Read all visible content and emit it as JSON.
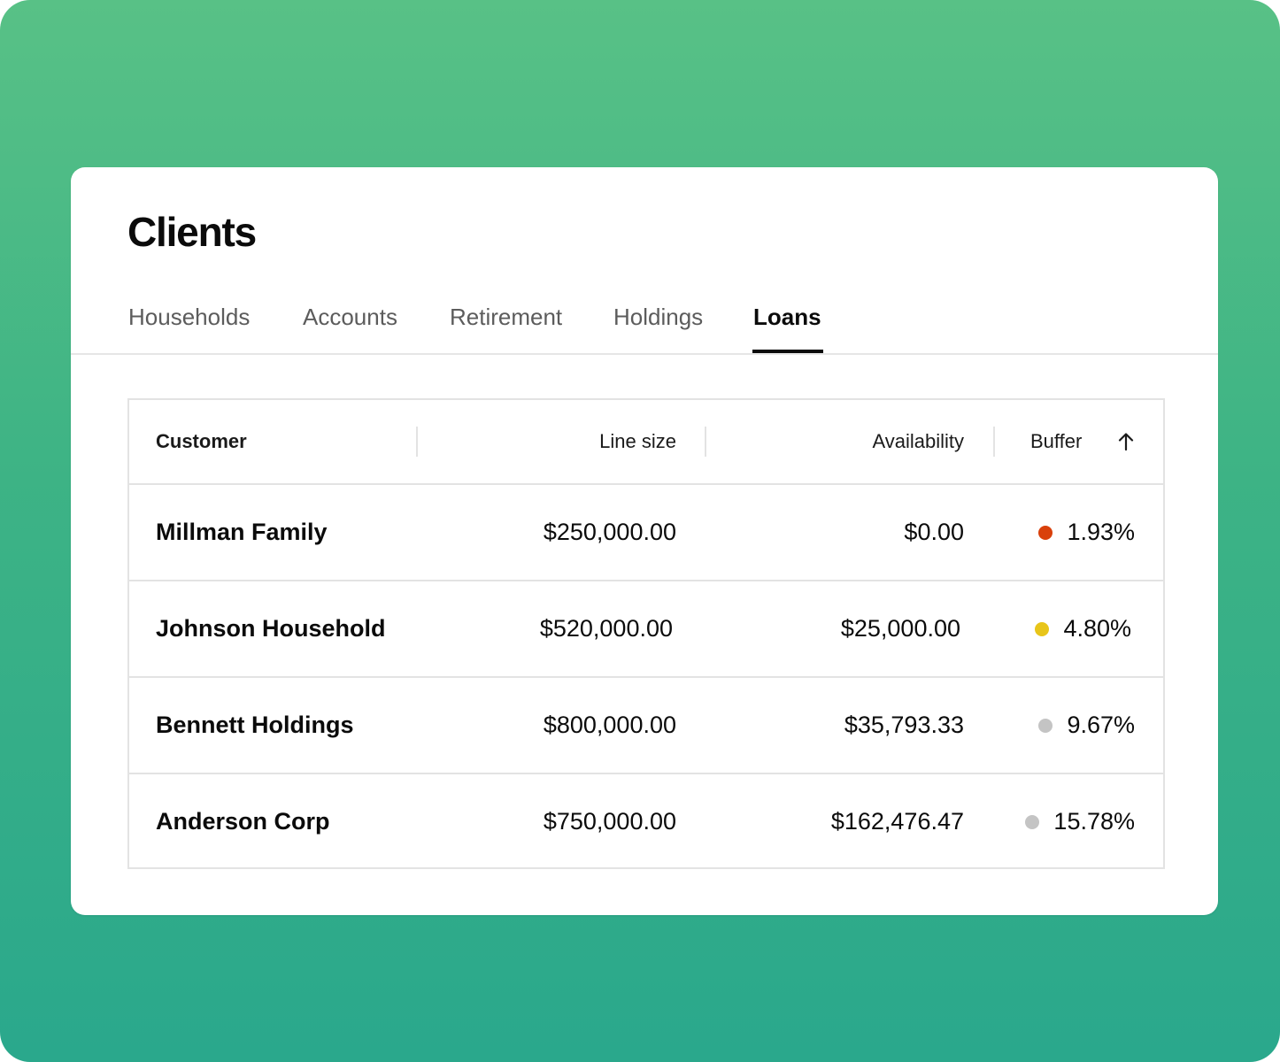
{
  "page": {
    "title": "Clients"
  },
  "tabs": [
    {
      "label": "Households",
      "active": false
    },
    {
      "label": "Accounts",
      "active": false
    },
    {
      "label": "Retirement",
      "active": false
    },
    {
      "label": "Holdings",
      "active": false
    },
    {
      "label": "Loans",
      "active": true
    }
  ],
  "table": {
    "columns": {
      "customer": "Customer",
      "line_size": "Line size",
      "availability": "Availability",
      "buffer": "Buffer"
    },
    "sort": {
      "column": "Buffer",
      "direction": "ascending",
      "icon": "arrow-up-icon"
    },
    "rows": [
      {
        "customer": "Millman Family",
        "line_size": "$250,000.00",
        "availability": "$0.00",
        "buffer": "1.93%",
        "status_color": "#d9400b"
      },
      {
        "customer": "Johnson Household",
        "line_size": "$520,000.00",
        "availability": "$25,000.00",
        "buffer": "4.80%",
        "status_color": "#e8c51a"
      },
      {
        "customer": "Bennett Holdings",
        "line_size": "$800,000.00",
        "availability": "$35,793.33",
        "buffer": "9.67%",
        "status_color": "#c4c4c4"
      },
      {
        "customer": "Anderson Corp",
        "line_size": "$750,000.00",
        "availability": "$162,476.47",
        "buffer": "15.78%",
        "status_color": "#c4c4c4"
      }
    ]
  },
  "colors": {
    "background_top": "#58c186",
    "background_bottom": "#2aa88c",
    "card": "#ffffff",
    "text": "#0b0b0b",
    "muted_text": "#5c5c5c",
    "border": "#e3e3e3"
  }
}
